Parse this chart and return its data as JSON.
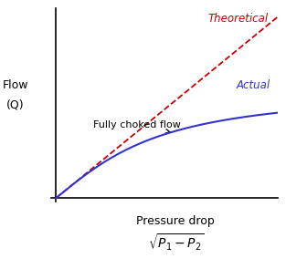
{
  "xlabel_line1": "Pressure drop",
  "xlabel_line2": "$\\sqrt{P_1 - P_2}$",
  "ylabel_line1": "Flow",
  "ylabel_line2": "(Q)",
  "label_theoretical": "Theoretical",
  "label_actual": "Actual",
  "label_choked": "Fully choked flow",
  "theoretical_color": "#cc0000",
  "actual_color": "#3333cc",
  "annotation_color": "#000000",
  "bg_color": "#ffffff",
  "plateau_level": 0.62,
  "figsize": [
    3.13,
    2.95
  ],
  "dpi": 100
}
